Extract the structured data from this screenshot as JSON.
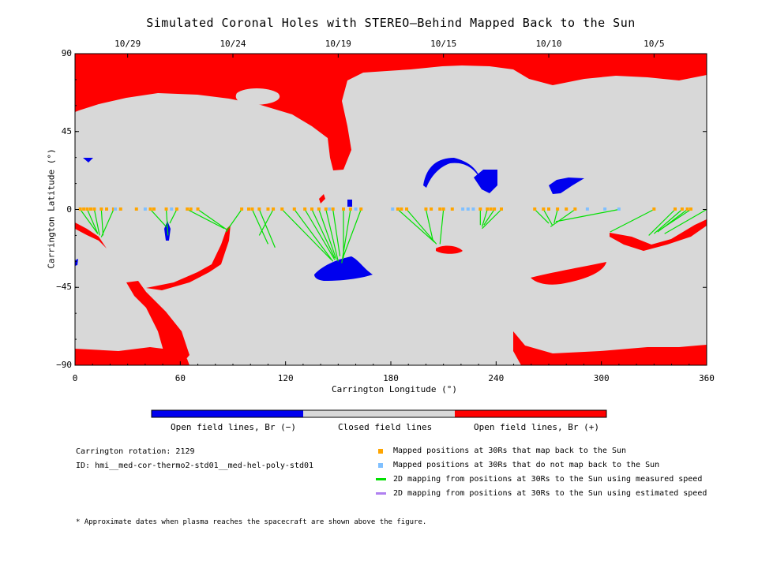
{
  "title": "Simulated Coronal Holes with STEREO–Behind Mapped Back to the Sun",
  "chart_data": {
    "type": "heatmap",
    "title": "Simulated Coronal Holes with STEREO–Behind Mapped Back to the Sun",
    "xlabel": "Carrington Longitude (°)",
    "ylabel": "Carrington Latitude (°)",
    "xlim": [
      0,
      360
    ],
    "ylim": [
      -90,
      90
    ],
    "x_ticks": [
      "0",
      "60",
      "120",
      "180",
      "240",
      "300",
      "360"
    ],
    "y_ticks": [
      "90",
      "45",
      "0",
      "−45",
      "−90"
    ],
    "top_axis_dates": [
      {
        "label": "10/29",
        "lon": 30
      },
      {
        "label": "10/24",
        "lon": 90
      },
      {
        "label": "10/19",
        "lon": 150
      },
      {
        "label": "10/15",
        "lon": 210
      },
      {
        "label": "10/10",
        "lon": 270
      },
      {
        "label": "10/5",
        "lon": 330
      }
    ],
    "colorbar": {
      "labels": [
        "Open field lines, Br (−)",
        "Closed field lines",
        "Open field lines, Br (+)"
      ],
      "colors": [
        "#0000ee",
        "#d8d8d8",
        "#ff0000"
      ]
    },
    "mapped_points_back": [
      [
        3,
        0
      ],
      [
        5,
        0
      ],
      [
        7,
        0
      ],
      [
        9,
        0
      ],
      [
        11,
        0
      ],
      [
        15,
        0
      ],
      [
        18,
        0
      ],
      [
        22,
        0
      ],
      [
        26,
        0
      ],
      [
        35,
        0
      ],
      [
        43,
        0
      ],
      [
        45,
        0
      ],
      [
        52,
        0
      ],
      [
        58,
        0
      ],
      [
        64,
        0
      ],
      [
        66,
        0
      ],
      [
        70,
        0
      ],
      [
        95,
        0
      ],
      [
        99,
        0
      ],
      [
        101,
        0
      ],
      [
        105,
        0
      ],
      [
        110,
        0
      ],
      [
        113,
        0
      ],
      [
        118,
        0
      ],
      [
        125,
        0
      ],
      [
        131,
        0
      ],
      [
        135,
        0
      ],
      [
        139,
        0
      ],
      [
        143,
        0
      ],
      [
        147,
        0
      ],
      [
        153,
        0
      ],
      [
        157,
        0
      ],
      [
        163,
        0
      ],
      [
        184,
        0
      ],
      [
        186,
        0
      ],
      [
        189,
        0
      ],
      [
        200,
        0
      ],
      [
        203,
        0
      ],
      [
        208,
        0
      ],
      [
        210,
        0
      ],
      [
        215,
        0
      ],
      [
        231,
        0
      ],
      [
        235,
        0
      ],
      [
        237,
        0
      ],
      [
        239,
        0
      ],
      [
        243,
        0
      ],
      [
        262,
        0
      ],
      [
        267,
        0
      ],
      [
        270,
        0
      ],
      [
        275,
        0
      ],
      [
        280,
        0
      ],
      [
        285,
        0
      ],
      [
        330,
        0
      ],
      [
        342,
        0
      ],
      [
        346,
        0
      ],
      [
        349,
        0
      ],
      [
        351,
        0
      ]
    ],
    "mapped_points_no_back": [
      [
        23,
        0
      ],
      [
        40,
        0
      ],
      [
        55,
        0
      ],
      [
        145,
        0
      ],
      [
        160,
        0
      ],
      [
        181,
        0
      ],
      [
        221,
        0
      ],
      [
        224,
        0
      ],
      [
        227,
        0
      ],
      [
        292,
        0
      ],
      [
        302,
        0
      ],
      [
        310,
        0
      ]
    ],
    "measured_speed_traces": [
      [
        [
          3,
          0
        ],
        [
          13,
          -14
        ]
      ],
      [
        [
          7,
          0
        ],
        [
          13,
          -14
        ]
      ],
      [
        [
          11,
          0
        ],
        [
          14,
          -15
        ]
      ],
      [
        [
          15,
          0
        ],
        [
          16,
          -15
        ]
      ],
      [
        [
          22,
          0
        ],
        [
          15,
          -16
        ]
      ],
      [
        [
          43,
          0
        ],
        [
          52,
          -10
        ]
      ],
      [
        [
          52,
          0
        ],
        [
          53,
          -15
        ]
      ],
      [
        [
          58,
          0
        ],
        [
          54,
          -8
        ]
      ],
      [
        [
          64,
          0
        ],
        [
          85,
          -11
        ]
      ],
      [
        [
          70,
          0
        ],
        [
          87,
          -12
        ]
      ],
      [
        [
          95,
          0
        ],
        [
          86,
          -13
        ]
      ],
      [
        [
          101,
          0
        ],
        [
          110,
          -20
        ]
      ],
      [
        [
          105,
          0
        ],
        [
          114,
          -22
        ]
      ],
      [
        [
          113,
          0
        ],
        [
          105,
          -15
        ]
      ],
      [
        [
          118,
          0
        ],
        [
          146,
          -29
        ]
      ],
      [
        [
          125,
          0
        ],
        [
          147,
          -30
        ]
      ],
      [
        [
          131,
          0
        ],
        [
          148,
          -29
        ]
      ],
      [
        [
          135,
          0
        ],
        [
          148,
          -28
        ]
      ],
      [
        [
          139,
          0
        ],
        [
          149,
          -29
        ]
      ],
      [
        [
          143,
          0
        ],
        [
          150,
          -30
        ]
      ],
      [
        [
          147,
          0
        ],
        [
          151,
          -27
        ]
      ],
      [
        [
          153,
          0
        ],
        [
          153,
          -28
        ]
      ],
      [
        [
          157,
          0
        ],
        [
          152,
          -31
        ]
      ],
      [
        [
          163,
          0
        ],
        [
          153,
          -27
        ]
      ],
      [
        [
          184,
          0
        ],
        [
          205,
          -19
        ]
      ],
      [
        [
          189,
          0
        ],
        [
          206,
          -20
        ]
      ],
      [
        [
          200,
          0
        ],
        [
          204,
          -18
        ]
      ],
      [
        [
          210,
          0
        ],
        [
          208,
          -20
        ]
      ],
      [
        [
          231,
          0
        ],
        [
          231,
          -9
        ]
      ],
      [
        [
          235,
          0
        ],
        [
          232,
          -10
        ]
      ],
      [
        [
          239,
          0
        ],
        [
          233,
          -9
        ]
      ],
      [
        [
          243,
          0
        ],
        [
          232,
          -11
        ]
      ],
      [
        [
          262,
          0
        ],
        [
          270,
          -8
        ]
      ],
      [
        [
          267,
          0
        ],
        [
          272,
          -9
        ]
      ],
      [
        [
          275,
          0
        ],
        [
          273,
          -8
        ]
      ],
      [
        [
          285,
          0
        ],
        [
          271,
          -10
        ]
      ],
      [
        [
          310,
          0
        ],
        [
          274,
          -7
        ]
      ],
      [
        [
          330,
          0
        ],
        [
          305,
          -13
        ]
      ],
      [
        [
          342,
          0
        ],
        [
          327,
          -15
        ]
      ],
      [
        [
          346,
          0
        ],
        [
          330,
          -14
        ]
      ],
      [
        [
          349,
          0
        ],
        [
          332,
          -13
        ]
      ],
      [
        [
          351,
          0
        ],
        [
          333,
          -12
        ]
      ],
      [
        [
          360,
          0
        ],
        [
          336,
          -14
        ]
      ]
    ],
    "estimated_speed_traces": []
  },
  "legend": {
    "points_back": "Mapped positions at 30Rs that map back to the Sun",
    "points_no_back": "Mapped positions at 30Rs that do not map back to the Sun",
    "measured": "2D mapping from positions at 30Rs to the Sun using measured speed",
    "estimated": "2D mapping from positions at 30Rs to the Sun using estimated speed",
    "colors": {
      "back": "#ffa500",
      "no_back": "#80c0ff",
      "measured": "#00e000",
      "estimated": "#b080f0"
    }
  },
  "info": {
    "rotation": "Carrington rotation: 2129",
    "id": "ID: hmi__med-cor-thermo2-std01__med-hel-poly-std01"
  },
  "footnote": "* Approximate dates when plasma reaches the spacecraft are shown above the figure."
}
